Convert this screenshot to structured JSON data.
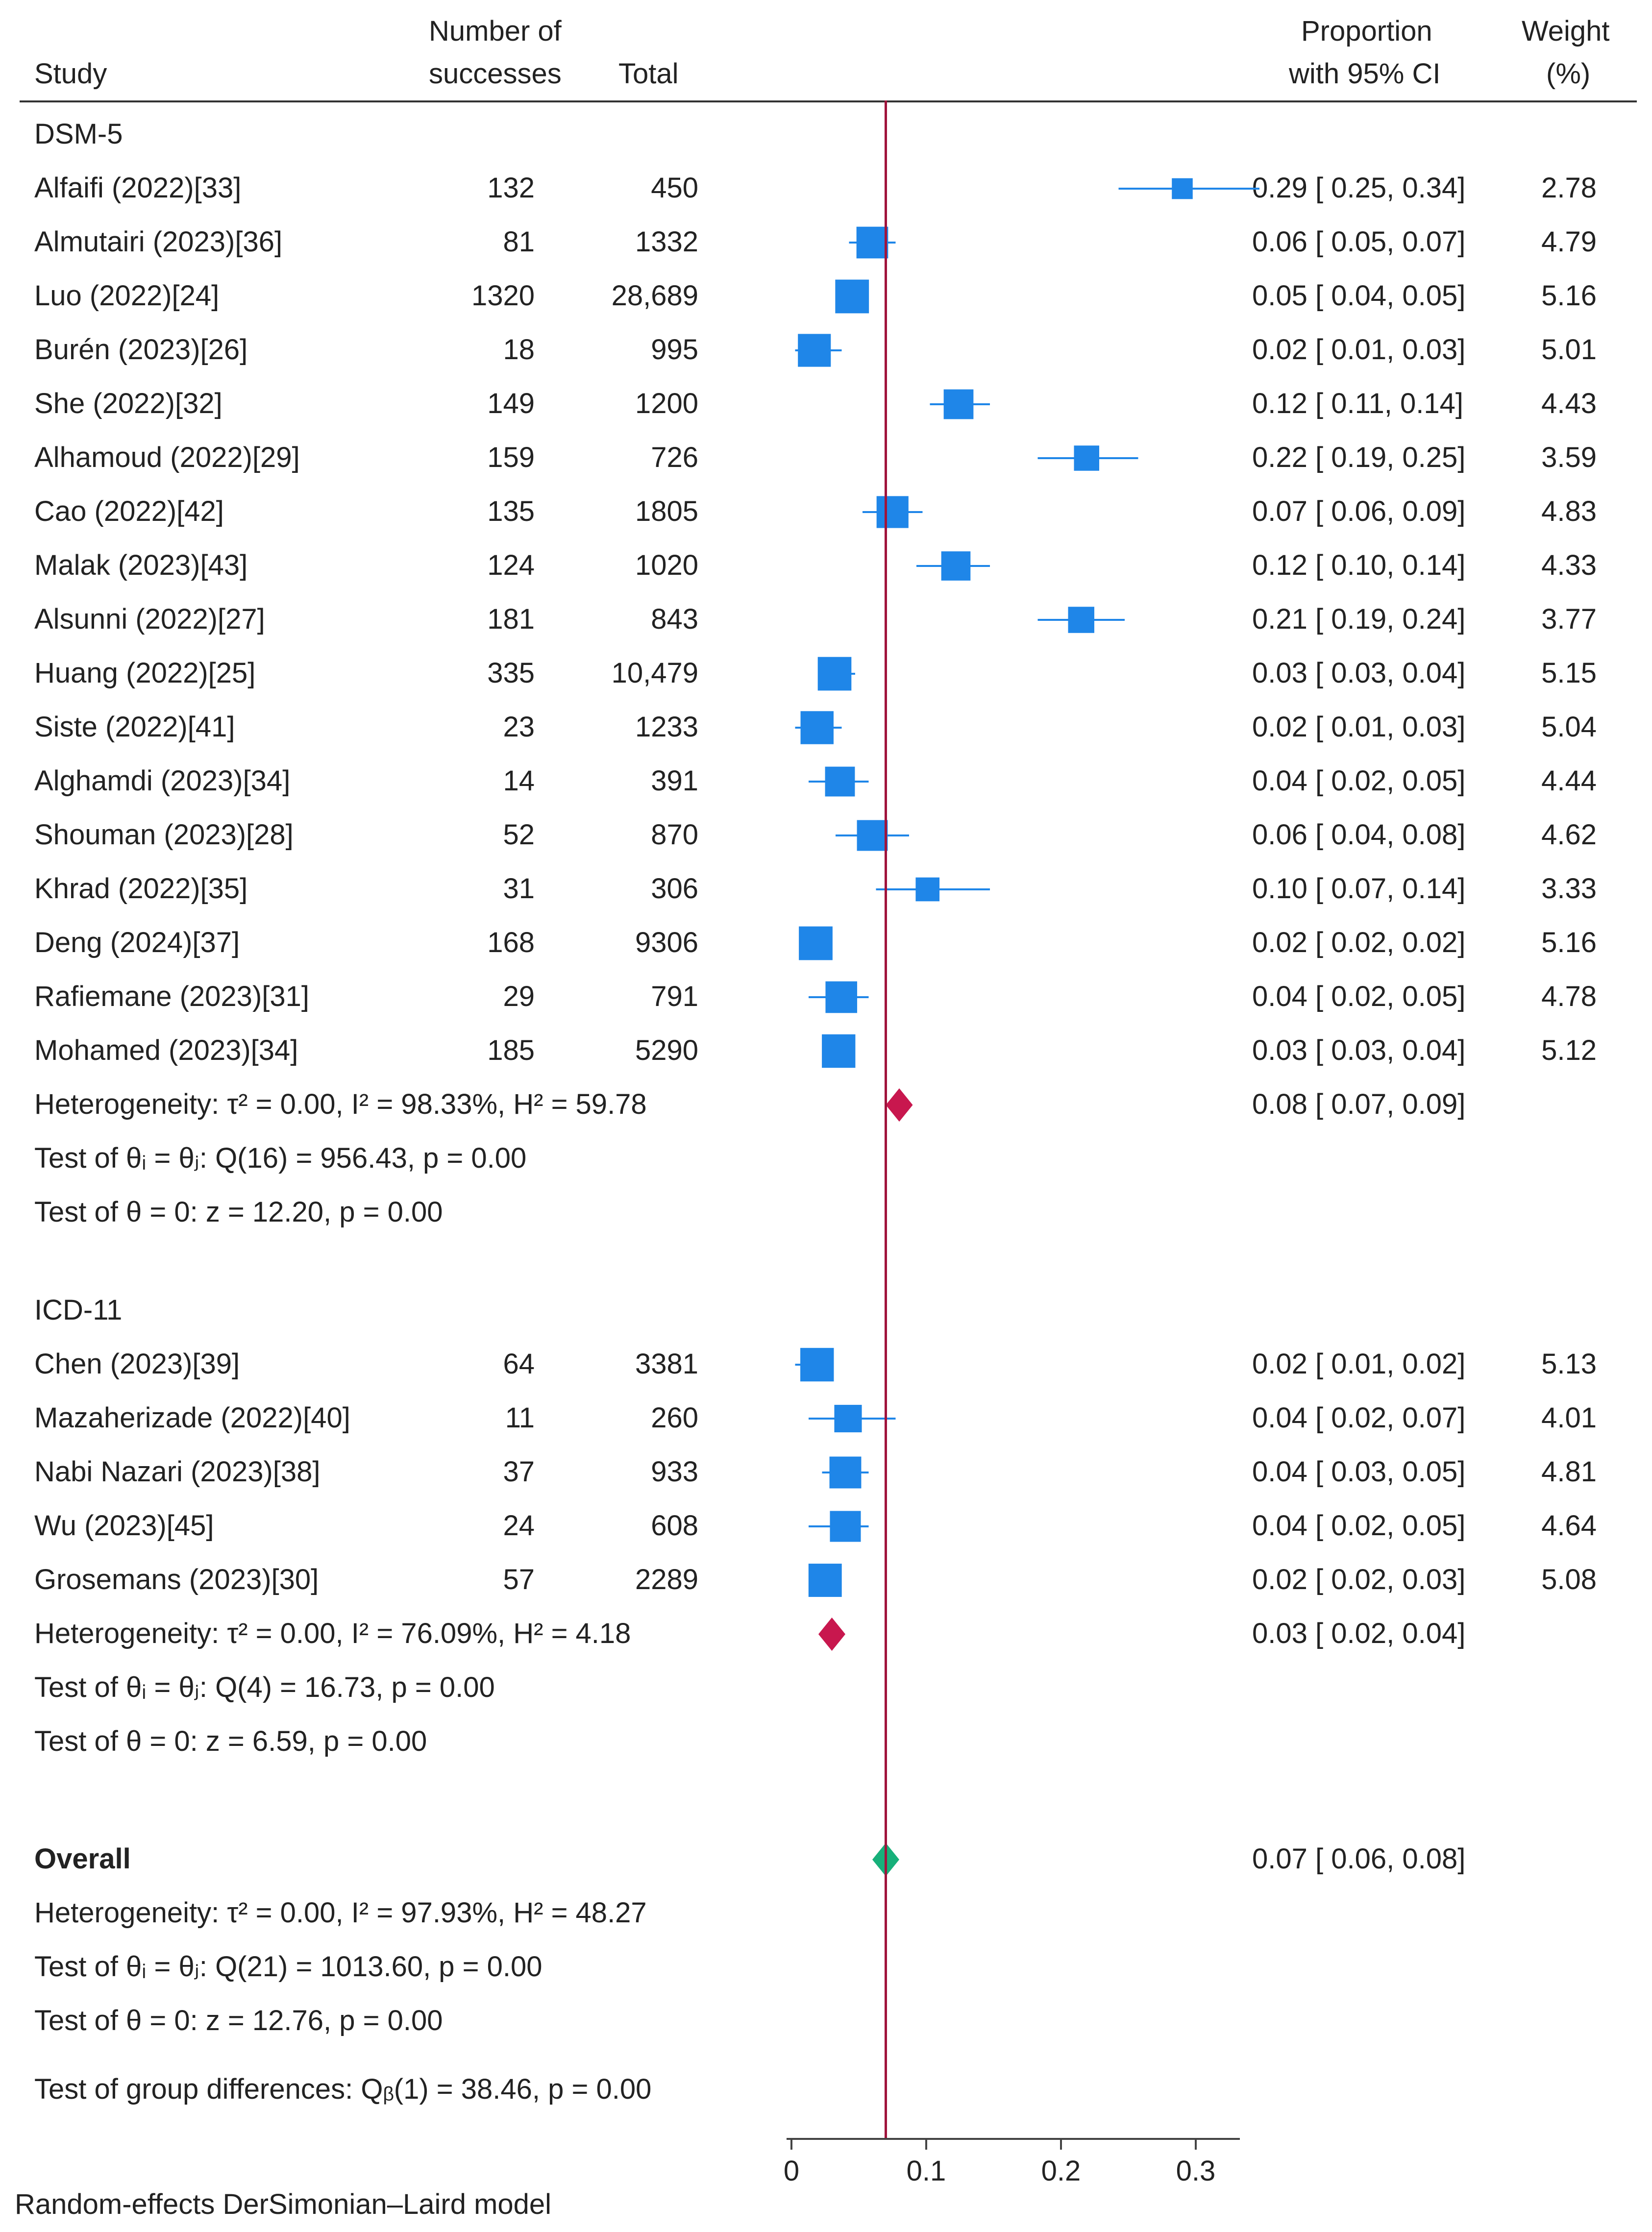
{
  "header": {
    "study": "Study",
    "successes_l1": "Number of",
    "successes_l2": "successes",
    "total": "Total",
    "prop_l1": "Proportion",
    "prop_l2": "with 95% CI",
    "weight_l1": "Weight",
    "weight_l2": "(%)"
  },
  "groups": [
    {
      "name": "DSM-5",
      "studies": [
        {
          "study": "Alfaifi (2022)[33]",
          "n": "132",
          "total": "450",
          "ci": "0.29 [ 0.25,  0.34]",
          "weight": "2.78",
          "est": 0.29,
          "lo": 0.25,
          "hi": 0.34,
          "w": 2.78
        },
        {
          "study": "Almutairi (2023)[36]",
          "n": "81",
          "total": "1332",
          "ci": "0.06 [ 0.05,  0.07]",
          "weight": "4.79",
          "est": 0.06,
          "lo": 0.05,
          "hi": 0.07,
          "w": 4.79
        },
        {
          "study": "Luo (2022)[24]",
          "n": "1320",
          "total": "28,689",
          "ci": "0.05 [ 0.04,  0.05]",
          "weight": "5.16",
          "est": 0.045,
          "lo": 0.04,
          "hi": 0.05,
          "w": 5.16
        },
        {
          "study": "Burén (2023)[26]",
          "n": "18",
          "total": "995",
          "ci": "0.02 [ 0.01,  0.03]",
          "weight": "5.01",
          "est": 0.017,
          "lo": 0.01,
          "hi": 0.03,
          "w": 5.01
        },
        {
          "study": "She (2022)[32]",
          "n": "149",
          "total": "1200",
          "ci": "0.12 [ 0.11,  0.14]",
          "weight": "4.43",
          "est": 0.124,
          "lo": 0.11,
          "hi": 0.14,
          "w": 4.43
        },
        {
          "study": "Alhamoud (2022)[29]",
          "n": "159",
          "total": "726",
          "ci": "0.22 [ 0.19,  0.25]",
          "weight": "3.59",
          "est": 0.219,
          "lo": 0.19,
          "hi": 0.25,
          "w": 3.59
        },
        {
          "study": "Cao (2022)[42]",
          "n": "135",
          "total": "1805",
          "ci": "0.07 [ 0.06,  0.09]",
          "weight": "4.83",
          "est": 0.075,
          "lo": 0.06,
          "hi": 0.09,
          "w": 4.83
        },
        {
          "study": "Malak (2023)[43]",
          "n": "124",
          "total": "1020",
          "ci": "0.12 [ 0.10,  0.14]",
          "weight": "4.33",
          "est": 0.122,
          "lo": 0.1,
          "hi": 0.14,
          "w": 4.33
        },
        {
          "study": "Alsunni (2022)[27]",
          "n": "181",
          "total": "843",
          "ci": "0.21 [ 0.19,  0.24]",
          "weight": "3.77",
          "est": 0.215,
          "lo": 0.19,
          "hi": 0.24,
          "w": 3.77
        },
        {
          "study": "Huang (2022)[25]",
          "n": "335",
          "total": "10,479",
          "ci": "0.03 [ 0.03,  0.04]",
          "weight": "5.15",
          "est": 0.032,
          "lo": 0.03,
          "hi": 0.04,
          "w": 5.15
        },
        {
          "study": "Siste (2022)[41]",
          "n": "23",
          "total": "1233",
          "ci": "0.02 [ 0.01,  0.03]",
          "weight": "5.04",
          "est": 0.019,
          "lo": 0.01,
          "hi": 0.03,
          "w": 5.04
        },
        {
          "study": "Alghamdi (2023)[34]",
          "n": "14",
          "total": "391",
          "ci": "0.04 [ 0.02,  0.05]",
          "weight": "4.44",
          "est": 0.036,
          "lo": 0.02,
          "hi": 0.05,
          "w": 4.44
        },
        {
          "study": "Shouman (2023)[28]",
          "n": "52",
          "total": "870",
          "ci": "0.06 [ 0.04,  0.08]",
          "weight": "4.62",
          "est": 0.06,
          "lo": 0.04,
          "hi": 0.08,
          "w": 4.62
        },
        {
          "study": "Khrad (2022)[35]",
          "n": "31",
          "total": "306",
          "ci": "0.10 [ 0.07,  0.14]",
          "weight": "3.33",
          "est": 0.101,
          "lo": 0.07,
          "hi": 0.14,
          "w": 3.33
        },
        {
          "study": "Deng (2024)[37]",
          "n": "168",
          "total": "9306",
          "ci": "0.02 [ 0.02,  0.02]",
          "weight": "5.16",
          "est": 0.018,
          "lo": 0.02,
          "hi": 0.02,
          "w": 5.16
        },
        {
          "study": "Rafiemane (2023)[31]",
          "n": "29",
          "total": "791",
          "ci": "0.04 [ 0.02,  0.05]",
          "weight": "4.78",
          "est": 0.037,
          "lo": 0.02,
          "hi": 0.05,
          "w": 4.78
        },
        {
          "study": "Mohamed (2023)[34]",
          "n": "185",
          "total": "5290",
          "ci": "0.03 [ 0.03,  0.04]",
          "weight": "5.12",
          "est": 0.035,
          "lo": 0.03,
          "hi": 0.04,
          "w": 5.12
        }
      ],
      "pooled": {
        "ci": "0.08 [ 0.07,  0.09]",
        "est": 0.08,
        "lo": 0.07,
        "hi": 0.09
      },
      "heterogeneity": "Heterogeneity: τ² = 0.00, I² = 98.33%, H² = 59.78",
      "q_test": "Test of θᵢ = θⱼ: Q(16) = 956.43, p = 0.00",
      "z_test": "Test of θ = 0: z = 12.20, p = 0.00"
    },
    {
      "name": "ICD-11",
      "studies": [
        {
          "study": "Chen (2023)[39]",
          "n": "64",
          "total": "3381",
          "ci": "0.02 [ 0.01,  0.02]",
          "weight": "5.13",
          "est": 0.019,
          "lo": 0.01,
          "hi": 0.02,
          "w": 5.13
        },
        {
          "study": "Mazaherizade (2022)[40]",
          "n": "11",
          "total": "260",
          "ci": "0.04 [ 0.02,  0.07]",
          "weight": "4.01",
          "est": 0.042,
          "lo": 0.02,
          "hi": 0.07,
          "w": 4.01
        },
        {
          "study": "Nabi Nazari (2023)[38]",
          "n": "37",
          "total": "933",
          "ci": "0.04 [ 0.03,  0.05]",
          "weight": "4.81",
          "est": 0.04,
          "lo": 0.03,
          "hi": 0.05,
          "w": 4.81
        },
        {
          "study": "Wu (2023)[45]",
          "n": "24",
          "total": "608",
          "ci": "0.04 [ 0.02,  0.05]",
          "weight": "4.64",
          "est": 0.04,
          "lo": 0.02,
          "hi": 0.05,
          "w": 4.64
        },
        {
          "study": "Grosemans (2023)[30]",
          "n": "57",
          "total": "2289",
          "ci": "0.02 [ 0.02,  0.03]",
          "weight": "5.08",
          "est": 0.025,
          "lo": 0.02,
          "hi": 0.03,
          "w": 5.08
        }
      ],
      "pooled": {
        "ci": "0.03 [ 0.02,  0.04]",
        "est": 0.03,
        "lo": 0.02,
        "hi": 0.04
      },
      "heterogeneity": "Heterogeneity: τ² = 0.00, I² = 76.09%, H² = 4.18",
      "q_test": "Test of θᵢ = θⱼ: Q(4) = 16.73, p = 0.00",
      "z_test": "Test of θ = 0: z = 6.59, p = 0.00"
    }
  ],
  "overall": {
    "label": "Overall",
    "ci": "0.07 [ 0.06,  0.08]",
    "est": 0.07,
    "lo": 0.06,
    "hi": 0.08,
    "heterogeneity": "Heterogeneity: τ² = 0.00, I² = 97.93%, H² = 48.27",
    "q_test": "Test of θᵢ = θⱼ: Q(21) = 1013.60, p = 0.00",
    "z_test": "Test of θ = 0: z = 12.76, p = 0.00",
    "group_diff": "Test of group differences: Qᵦ(1) = 38.46, p = 0.00"
  },
  "footer": "Random-effects DerSimonian–Laird model",
  "colors": {
    "square": "#1f86e8",
    "ci_line": "#1f86e8",
    "subgroup_diamond": "#c8174e",
    "overall_diamond": "#17b07a",
    "ref_line": "#a0143c"
  },
  "chart_data": {
    "type": "forest",
    "xlabel": "",
    "xlim": [
      0,
      0.33
    ],
    "x_ticks": [
      "0",
      "0.1",
      "0.2",
      "0.3"
    ],
    "reference_line": 0.07
  }
}
